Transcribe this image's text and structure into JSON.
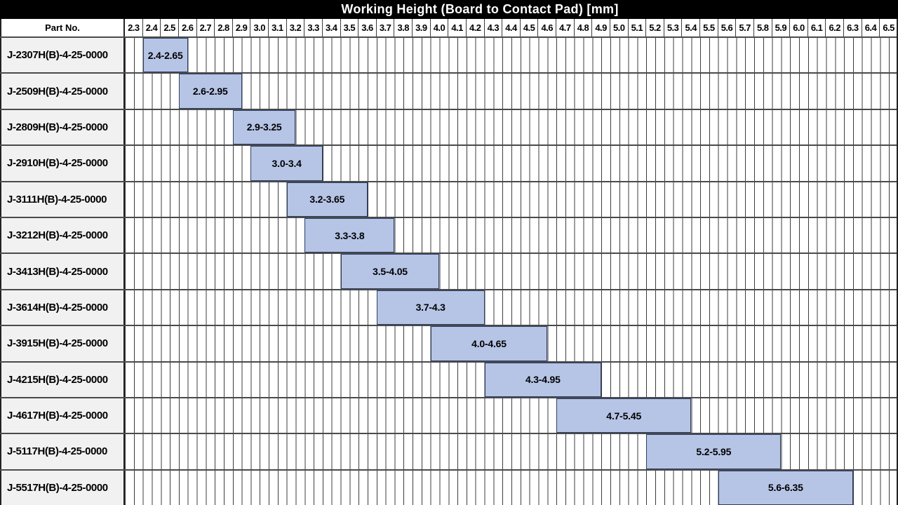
{
  "title": "Working Height (Board to Contact Pad) [mm]",
  "part_col_header": "Part No.",
  "colors": {
    "title_bg": "#000000",
    "title_fg": "#ffffff",
    "header_bg": "#ffffff",
    "part_cell_bg": "#f1f1f1",
    "grid_line": "#3d3d3d",
    "row_separator": "#4a4a4a",
    "frame": "#222222",
    "bar_fill": "#b6c4e6",
    "bar_border": "#2e3f63"
  },
  "chart_data": {
    "type": "bar",
    "orientation": "horizontal-range",
    "title": "Working Height (Board to Contact Pad) [mm]",
    "x_axis": {
      "min": 2.3,
      "max": 6.6,
      "major_step": 0.1,
      "minor_step": 0.05,
      "tick_labels": [
        "2.3",
        "2.4",
        "2.5",
        "2.6",
        "2.7",
        "2.8",
        "2.9",
        "3.0",
        "3.1",
        "3.2",
        "3.3",
        "3.4",
        "3.5",
        "3.6",
        "3.7",
        "3.8",
        "3.9",
        "4.0",
        "4.1",
        "4.2",
        "4.3",
        "4.4",
        "4.5",
        "4.6",
        "4.7",
        "4.8",
        "4.9",
        "5.0",
        "5.1",
        "5.2",
        "5.3",
        "5.4",
        "5.5",
        "5.6",
        "5.7",
        "5.8",
        "5.9",
        "6.0",
        "6.1",
        "6.2",
        "6.3",
        "6.4",
        "6.5"
      ]
    },
    "rows": [
      {
        "part": "J-2307H(B)-4-25-0000",
        "label": "2.4-2.65",
        "low": 2.4,
        "high": 2.65
      },
      {
        "part": "J-2509H(B)-4-25-0000",
        "label": "2.6-2.95",
        "low": 2.6,
        "high": 2.95
      },
      {
        "part": "J-2809H(B)-4-25-0000",
        "label": "2.9-3.25",
        "low": 2.9,
        "high": 3.25
      },
      {
        "part": "J-2910H(B)-4-25-0000",
        "label": "3.0-3.4",
        "low": 3.0,
        "high": 3.4
      },
      {
        "part": "J-3111H(B)-4-25-0000",
        "label": "3.2-3.65",
        "low": 3.2,
        "high": 3.65
      },
      {
        "part": "J-3212H(B)-4-25-0000",
        "label": "3.3-3.8",
        "low": 3.3,
        "high": 3.8
      },
      {
        "part": "J-3413H(B)-4-25-0000",
        "label": "3.5-4.05",
        "low": 3.5,
        "high": 4.05
      },
      {
        "part": "J-3614H(B)-4-25-0000",
        "label": "3.7-4.3",
        "low": 3.7,
        "high": 4.3
      },
      {
        "part": "J-3915H(B)-4-25-0000",
        "label": "4.0-4.65",
        "low": 4.0,
        "high": 4.65
      },
      {
        "part": "J-4215H(B)-4-25-0000",
        "label": "4.3-4.95",
        "low": 4.3,
        "high": 4.95
      },
      {
        "part": "J-4617H(B)-4-25-0000",
        "label": "4.7-5.45",
        "low": 4.7,
        "high": 5.45
      },
      {
        "part": "J-5117H(B)-4-25-0000",
        "label": "5.2-5.95",
        "low": 5.2,
        "high": 5.95
      },
      {
        "part": "J-5517H(B)-4-25-0000",
        "label": "5.6-6.35",
        "low": 5.6,
        "high": 6.35
      }
    ]
  }
}
